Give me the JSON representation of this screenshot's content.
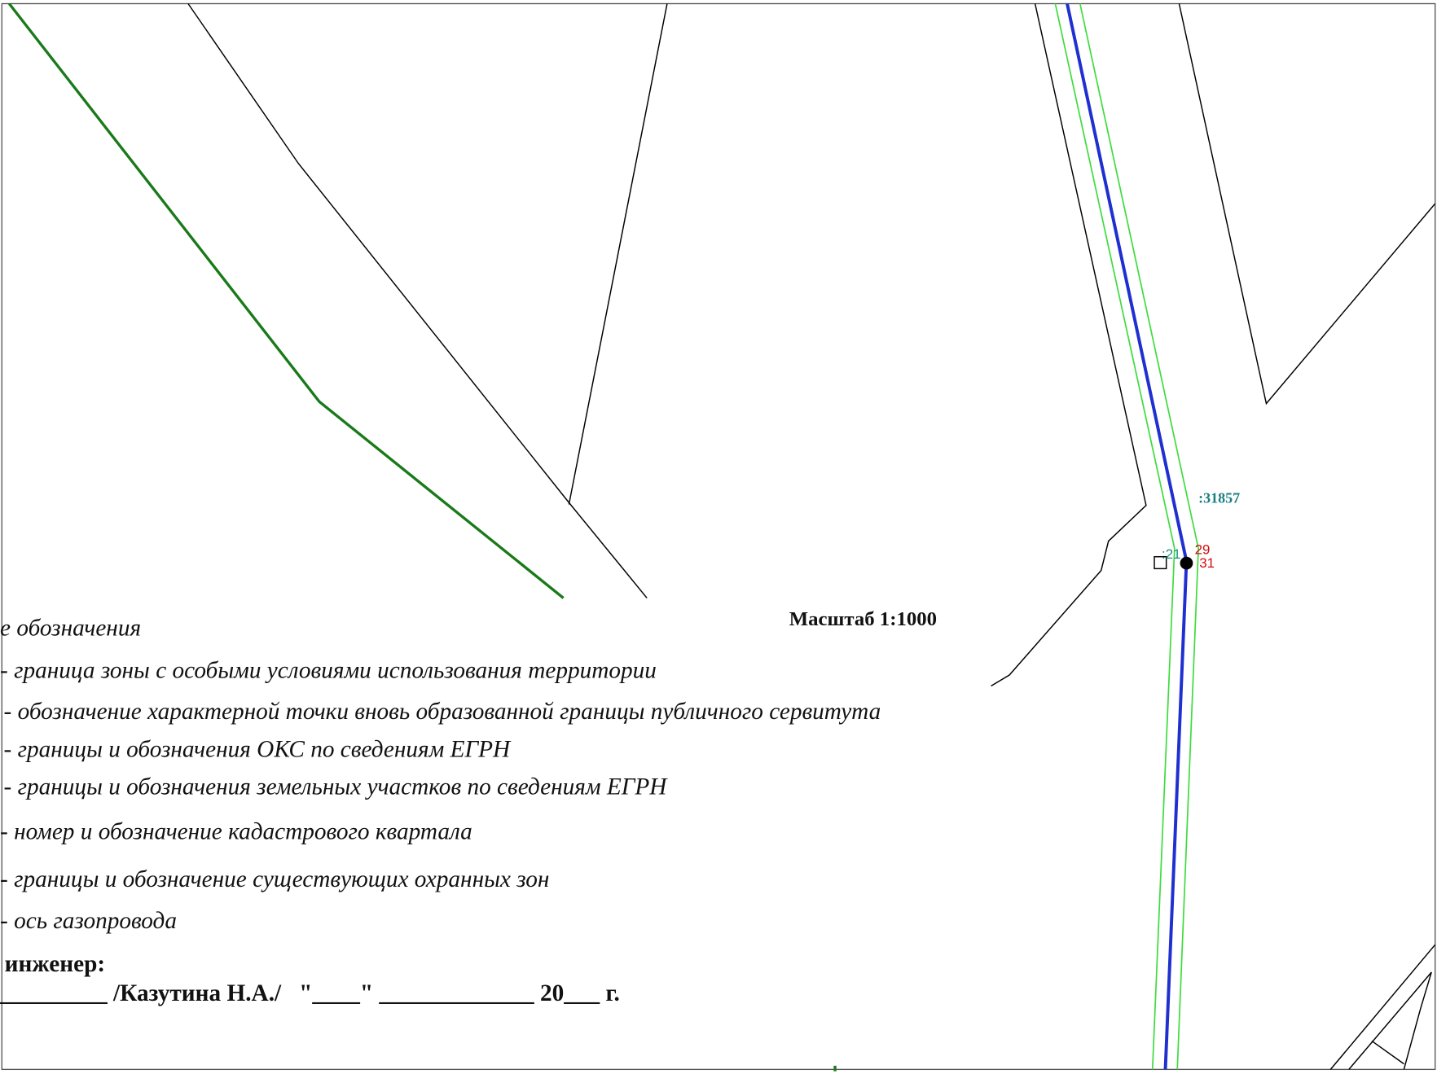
{
  "map_labels": {
    "quarter": ":31857",
    "points": [
      ":21",
      "29",
      "31"
    ]
  },
  "scale_label": "Масштаб 1:1000",
  "legend": {
    "title": "е обозначения",
    "items": [
      "- граница зоны с особыми условиями использования территории",
      "- обозначение характерной точки вновь образованной границы публичного сервитута",
      "- границы и обозначения ОКС по сведениям ЕГРН",
      "- границы и обозначения земельных участков по сведениям ЕГРН",
      "- номер и обозначение кадастрового квартала",
      "- границы и обозначение существующих охранных зон",
      "- ось газопровода"
    ]
  },
  "signature": {
    "role": "инженер:",
    "line": "_________ /Казутина Н.А./   \"____\" _____________ 20___ г."
  }
}
